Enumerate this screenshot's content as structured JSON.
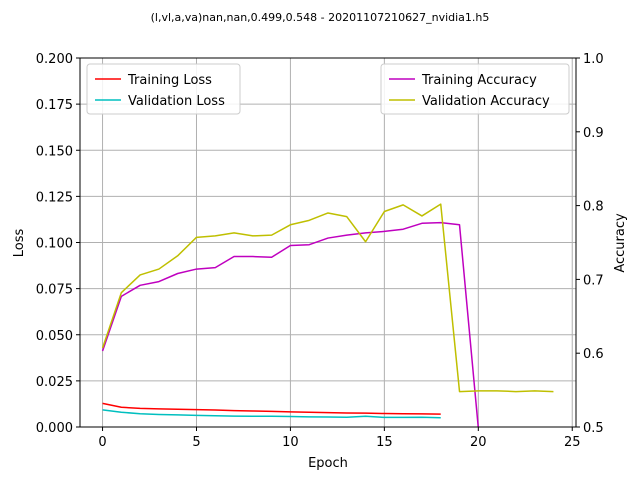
{
  "chart_data": {
    "type": "line",
    "title": "(l,vl,a,va)nan,nan,0.499,0.548 - 20201107210627_nvidia1.h5",
    "xlabel": "Epoch",
    "ylabel": "Loss",
    "y2label": "Accuracy",
    "xlim": [
      -1.2,
      25.2
    ],
    "ylim": [
      0,
      0.2
    ],
    "y2lim": [
      0.5,
      1.0
    ],
    "grid": true,
    "x_ticks": [
      0,
      5,
      10,
      15,
      20,
      25
    ],
    "y_ticks": [
      0.0,
      0.025,
      0.05,
      0.075,
      0.1,
      0.125,
      0.15,
      0.175,
      0.2
    ],
    "y_tick_labels": [
      "0.000",
      "0.025",
      "0.050",
      "0.075",
      "0.100",
      "0.125",
      "0.150",
      "0.175",
      "0.200"
    ],
    "y2_ticks": [
      0.5,
      0.6,
      0.7,
      0.8,
      0.9,
      1.0
    ],
    "y2_tick_labels": [
      "0.5",
      "0.6",
      "0.7",
      "0.8",
      "0.9",
      "1.0"
    ],
    "legend_left": {
      "placement": "upper-left",
      "entries": [
        "Training Loss",
        "Validation Loss"
      ]
    },
    "legend_right": {
      "placement": "upper-right",
      "entries": [
        "Training Accuracy",
        "Validation Accuracy"
      ]
    },
    "series": [
      {
        "name": "Training Loss",
        "axis": "left",
        "color": "#ff0000",
        "x": [
          0,
          1,
          2,
          3,
          4,
          5,
          6,
          7,
          8,
          9,
          10,
          11,
          12,
          13,
          14,
          15,
          16,
          17,
          18
        ],
        "values": [
          0.0128,
          0.0107,
          0.0101,
          0.0098,
          0.0096,
          0.0094,
          0.0092,
          0.0089,
          0.0087,
          0.0085,
          0.0082,
          0.008,
          0.0078,
          0.0076,
          0.0075,
          0.0073,
          0.0072,
          0.0071,
          0.007
        ]
      },
      {
        "name": "Validation Loss",
        "axis": "left",
        "color": "#00bfbf",
        "x": [
          0,
          1,
          2,
          3,
          4,
          5,
          6,
          7,
          8,
          9,
          10,
          11,
          12,
          13,
          14,
          15,
          16,
          17,
          18
        ],
        "values": [
          0.0093,
          0.008,
          0.0072,
          0.0068,
          0.0066,
          0.0063,
          0.0061,
          0.0059,
          0.0058,
          0.0058,
          0.0057,
          0.0055,
          0.0054,
          0.0053,
          0.0058,
          0.0052,
          0.0052,
          0.0053,
          0.005
        ]
      },
      {
        "name": "Training Accuracy",
        "axis": "right",
        "color": "#bf00bf",
        "x": [
          0,
          1,
          2,
          3,
          4,
          5,
          6,
          7,
          8,
          9,
          10,
          11,
          12,
          13,
          14,
          15,
          16,
          17,
          18,
          19,
          20,
          21
        ],
        "values": [
          0.603,
          0.677,
          0.692,
          0.697,
          0.708,
          0.714,
          0.716,
          0.731,
          0.731,
          0.73,
          0.746,
          0.747,
          0.756,
          0.76,
          0.763,
          0.765,
          0.768,
          0.776,
          0.777,
          0.774,
          0.499,
          0.499
        ]
      },
      {
        "name": "Validation Accuracy",
        "axis": "right",
        "color": "#bfbf00",
        "x": [
          0,
          1,
          2,
          3,
          4,
          5,
          6,
          7,
          8,
          9,
          10,
          11,
          12,
          13,
          14,
          15,
          16,
          17,
          18,
          19,
          20,
          21,
          22,
          23,
          24
        ],
        "values": [
          0.607,
          0.682,
          0.706,
          0.714,
          0.732,
          0.757,
          0.759,
          0.763,
          0.759,
          0.76,
          0.774,
          0.78,
          0.79,
          0.785,
          0.751,
          0.792,
          0.801,
          0.786,
          0.802,
          0.548,
          0.549,
          0.549,
          0.548,
          0.549,
          0.548
        ]
      }
    ]
  }
}
